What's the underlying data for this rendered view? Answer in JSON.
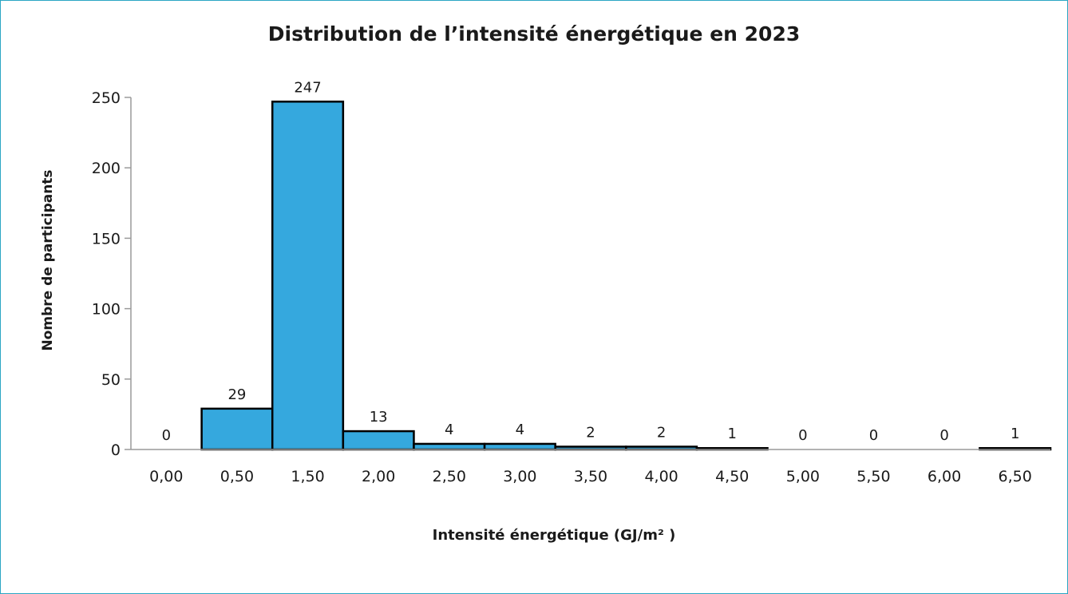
{
  "chart_data": {
    "type": "bar",
    "title": "Distribution de l’intensité énergétique en 2023",
    "xlabel": "Intensité énergétique (GJ/m² )",
    "ylabel": "Nombre de participants",
    "categories": [
      "0,00",
      "0,50",
      "1,50",
      "2,00",
      "2,50",
      "3,00",
      "3,50",
      "4,00",
      "4,50",
      "5,00",
      "5,50",
      "6,00",
      "6,50"
    ],
    "values": [
      0,
      29,
      247,
      13,
      4,
      4,
      2,
      2,
      1,
      0,
      0,
      0,
      1
    ],
    "data_labels": [
      "0",
      "29",
      "247",
      "13",
      "4",
      "4",
      "2",
      "2",
      "1",
      "0",
      "0",
      "0",
      "1"
    ],
    "yticks": [
      "0",
      "50",
      "100",
      "150",
      "200",
      "250"
    ],
    "ylim": [
      0,
      250
    ],
    "grid": false,
    "legend": "none",
    "colors": {
      "bar_fill": "#35a8de",
      "bar_stroke": "#000000",
      "axis": "#9a9a9a",
      "frame": "#2aa6c4"
    }
  }
}
